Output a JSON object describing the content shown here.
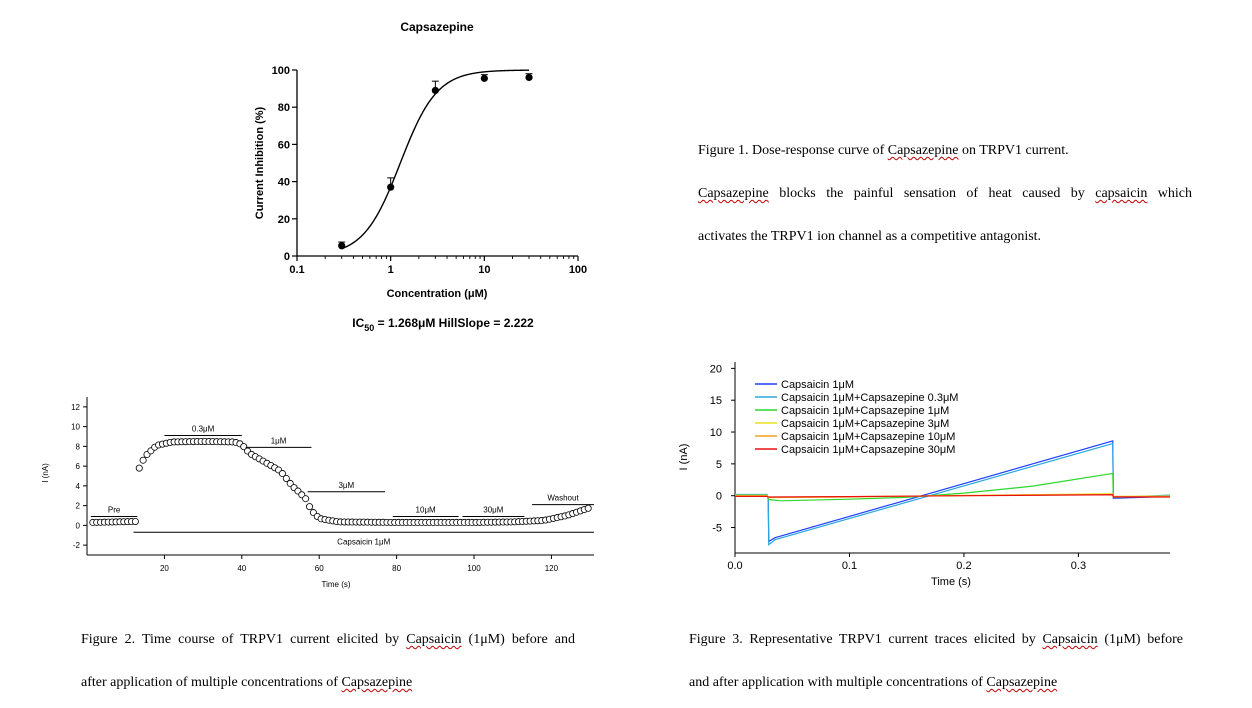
{
  "chart_data": [
    {
      "type": "scatter",
      "title": "Capsazepine",
      "xlabel": "Concentration (μM)",
      "ylabel": "Current Inhibition (%)",
      "x_scale": "log",
      "xlim": [
        0.1,
        100
      ],
      "ylim": [
        0,
        100
      ],
      "x_ticks": [
        "0.1",
        "1",
        "10",
        "100"
      ],
      "y_ticks": [
        "0",
        "20",
        "40",
        "60",
        "80",
        "100"
      ],
      "points": [
        {
          "x": 0.3,
          "y": 5.5,
          "err": 2
        },
        {
          "x": 1,
          "y": 37,
          "err": 5
        },
        {
          "x": 3,
          "y": 89,
          "err": 5
        },
        {
          "x": 10,
          "y": 95.5,
          "err": 2
        },
        {
          "x": 30,
          "y": 96,
          "err": 2
        }
      ],
      "fit": {
        "ic50": 1.268,
        "hill": 2.222,
        "bottom": 0,
        "top": 100
      },
      "annotation": {
        "prefix": "IC",
        "sub": "50",
        "rest": " = 1.268μM  HillSlope = 2.222"
      }
    },
    {
      "type": "scatter",
      "title": "",
      "xlabel": "Time (s)",
      "ylabel": "I (nA)",
      "xlim": [
        0,
        131
      ],
      "ylim": [
        -3,
        13
      ],
      "x_ticks": [
        "20",
        "40",
        "60",
        "80",
        "100",
        "120"
      ],
      "y_ticks": [
        "-2",
        "0",
        "2",
        "4",
        "6",
        "8",
        "10",
        "12"
      ],
      "series": [
        {
          "values": [
            [
              1.5,
              0.3
            ],
            [
              13,
              0.4
            ],
            [
              13.5,
              5.8
            ],
            [
              15,
              7.0
            ],
            [
              18,
              8.1
            ],
            [
              22,
              8.45
            ],
            [
              30,
              8.5
            ],
            [
              38,
              8.45
            ],
            [
              40,
              8.2
            ],
            [
              42,
              7.3
            ],
            [
              46,
              6.4
            ],
            [
              50,
              5.5
            ],
            [
              53,
              4.0
            ],
            [
              55,
              3.3
            ],
            [
              56.5,
              2.7
            ],
            [
              58,
              1.5
            ],
            [
              60,
              0.7
            ],
            [
              65,
              0.35
            ],
            [
              80,
              0.3
            ],
            [
              100,
              0.3
            ],
            [
              110,
              0.35
            ],
            [
              118,
              0.5
            ],
            [
              124,
              1.0
            ],
            [
              130,
              1.8
            ]
          ]
        }
      ],
      "segments": [
        {
          "label": "Pre",
          "from": 1,
          "to": 13,
          "y": 0.9
        },
        {
          "label": "0.3μM",
          "from": 20,
          "to": 40,
          "y": 9.1
        },
        {
          "label": "1μM",
          "from": 41,
          "to": 58,
          "y": 7.9
        },
        {
          "label": "3μM",
          "from": 57,
          "to": 77,
          "y": 3.4
        },
        {
          "label": "10μM",
          "from": 79,
          "to": 96,
          "y": 0.9
        },
        {
          "label": "30μM",
          "from": 97,
          "to": 113,
          "y": 0.9
        },
        {
          "label": "Washout",
          "from": 115,
          "to": 131,
          "y": 2.1
        },
        {
          "label": "Capsaicin 1μM",
          "from": 12,
          "to": 131,
          "y": -0.7,
          "label_below": true
        }
      ]
    },
    {
      "type": "line",
      "title": "",
      "xlabel": "Time (s)",
      "ylabel": "I (nA)",
      "xlim": [
        0,
        0.38
      ],
      "ylim": [
        -9,
        21
      ],
      "x_ticks": [
        "0.0",
        "0.1",
        "0.2",
        "0.3"
      ],
      "y_ticks": [
        "-5",
        "0",
        "5",
        "10",
        "15",
        "20"
      ],
      "legend": "top-left",
      "series": [
        {
          "name": "Capsaicin 1μM",
          "color": "#1f3fff",
          "values": [
            [
              0,
              0.1
            ],
            [
              0.028,
              0.1
            ],
            [
              0.029,
              -0.5
            ],
            [
              0.0295,
              -7.2
            ],
            [
              0.035,
              -6.6
            ],
            [
              0.33,
              8.6
            ],
            [
              0.3305,
              -0.4
            ],
            [
              0.38,
              -0.1
            ]
          ]
        },
        {
          "name": "Capsaicin 1μM+Capsazepine 0.3μM",
          "color": "#2aa7e0",
          "values": [
            [
              0,
              0.2
            ],
            [
              0.028,
              0.2
            ],
            [
              0.029,
              -0.4
            ],
            [
              0.0295,
              -7.7
            ],
            [
              0.035,
              -6.9
            ],
            [
              0.33,
              8.2
            ],
            [
              0.3305,
              -0.3
            ],
            [
              0.38,
              0.1
            ]
          ]
        },
        {
          "name": "Capsaicin 1μM+Capsazepine 1μM",
          "color": "#2bd82b",
          "values": [
            [
              0,
              0.1
            ],
            [
              0.028,
              0.1
            ],
            [
              0.029,
              -0.6
            ],
            [
              0.04,
              -0.8
            ],
            [
              0.1,
              -0.55
            ],
            [
              0.15,
              -0.25
            ],
            [
              0.2,
              0.4
            ],
            [
              0.26,
              1.5
            ],
            [
              0.33,
              3.5
            ],
            [
              0.3305,
              -0.2
            ],
            [
              0.38,
              -0.1
            ]
          ]
        },
        {
          "name": "Capsaicin 1μM+Capsazepine 3μM",
          "color": "#e8e020",
          "values": [
            [
              0,
              0.05
            ],
            [
              0.028,
              0.05
            ],
            [
              0.029,
              -0.3
            ],
            [
              0.1,
              -0.2
            ],
            [
              0.2,
              0.05
            ],
            [
              0.33,
              0.3
            ],
            [
              0.3305,
              -0.1
            ],
            [
              0.38,
              -0.05
            ]
          ]
        },
        {
          "name": "Capsaicin 1μM+Capsazepine 10μM",
          "color": "#f0a020",
          "values": [
            [
              0,
              -0.05
            ],
            [
              0.028,
              -0.05
            ],
            [
              0.029,
              -0.25
            ],
            [
              0.1,
              -0.15
            ],
            [
              0.2,
              0.0
            ],
            [
              0.33,
              0.2
            ],
            [
              0.3305,
              -0.15
            ],
            [
              0.38,
              -0.1
            ]
          ]
        },
        {
          "name": "Capsaicin 1μM+Capsazepine 30μM",
          "color": "#e81010",
          "values": [
            [
              0,
              -0.1
            ],
            [
              0.028,
              -0.1
            ],
            [
              0.029,
              -0.2
            ],
            [
              0.1,
              -0.15
            ],
            [
              0.2,
              0.0
            ],
            [
              0.33,
              0.15
            ],
            [
              0.3305,
              -0.2
            ],
            [
              0.38,
              -0.2
            ]
          ]
        }
      ]
    }
  ],
  "captions": {
    "fig1": {
      "line1_a": "Figure 1. Dose-response curve of ",
      "line1_b": "Capsazepine",
      "line1_c": " on TRPV1 current.",
      "line2_a": "Capsazepine",
      "line2_b": " blocks the painful sensation of heat caused by ",
      "line2_c": "capsaicin",
      "line2_d": " which",
      "line3": "activates the TRPV1 ion channel as a competitive antagonist."
    },
    "fig2": {
      "line1_a": "Figure 2. Time course of TRPV1 current elicited by ",
      "line1_b": "Capsaicin",
      "line1_c": " (1μM) before and",
      "line2_a": "after application of multiple concentrations of ",
      "line2_b": "Capsazepine"
    },
    "fig3": {
      "line1_a": "Figure 3. Representative TRPV1 current traces elicited by ",
      "line1_b": "Capsaicin",
      "line1_c": " (1μM) before",
      "line2_a": "and after application with multiple concentrations of ",
      "line2_b": "Capsazepine"
    }
  }
}
